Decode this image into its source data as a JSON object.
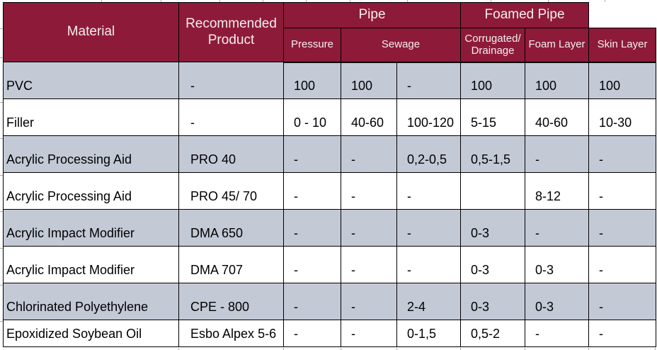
{
  "colors": {
    "header_bg": "#8E1A39",
    "header_text": "#F3EFF0",
    "row_alt_bg": "#C4C9D6",
    "row_bg": "#FFFFFF",
    "cell_border": "#000000",
    "gridline_tick": "#ADADAD"
  },
  "table": {
    "header": {
      "material": "Material",
      "recommended_product": "Recommended Product",
      "pipe_group": "Pipe",
      "foamed_pipe_group": "Foamed Pipe",
      "pressure": "Pressure",
      "sewage": "Sewage",
      "corrugated_drainage": "Corrugated/ Drainage",
      "foam_layer": "Foam Layer",
      "skin_layer": "Skin Layer"
    },
    "rows": [
      {
        "material": "PVC",
        "product": "-",
        "pressure": "100",
        "sewage_1": "100",
        "sewage_2": "-",
        "corrugated": "100",
        "foam": "100",
        "skin": "100"
      },
      {
        "material": "Filler",
        "product": "-",
        "pressure": "0 - 10",
        "sewage_1": "40-60",
        "sewage_2": "100-120",
        "corrugated": "5-15",
        "foam": "40-60",
        "skin": "10-30"
      },
      {
        "material": "Acrylic Processing Aid",
        "product": "PRO 40",
        "pressure": "-",
        "sewage_1": "-",
        "sewage_2": "0,2-0,5",
        "corrugated": "0,5-1,5",
        "foam": "-",
        "skin": "-"
      },
      {
        "material": "Acrylic Processing Aid",
        "product": "PRO 45/ 70",
        "pressure": "-",
        "sewage_1": "-",
        "sewage_2": "-",
        "corrugated": "",
        "foam": "8-12",
        "skin": "-"
      },
      {
        "material": "Acrylic Impact Modifier",
        "product": "DMA 650",
        "pressure": "-",
        "sewage_1": "-",
        "sewage_2": "-",
        "corrugated": "0-3",
        "foam": "-",
        "skin": "-"
      },
      {
        "material": "Acrylic Impact Modifier",
        "product": "DMA 707",
        "pressure": "-",
        "sewage_1": "-",
        "sewage_2": "-",
        "corrugated": "0-3",
        "foam": "0-3",
        "skin": "-"
      },
      {
        "material": "Chlorinated Polyethylene",
        "product": "CPE - 800",
        "pressure": "-",
        "sewage_1": "-",
        "sewage_2": "2-4",
        "corrugated": "0-3",
        "foam": "0-3",
        "skin": "-"
      },
      {
        "material": "Epoxidized Soybean Oil",
        "product": "Esbo Alpex 5-6",
        "pressure": "-",
        "sewage_1": "-",
        "sewage_2": "0-1,5",
        "corrugated": "0,5-2",
        "foam": "-",
        "skin": "-"
      }
    ]
  }
}
